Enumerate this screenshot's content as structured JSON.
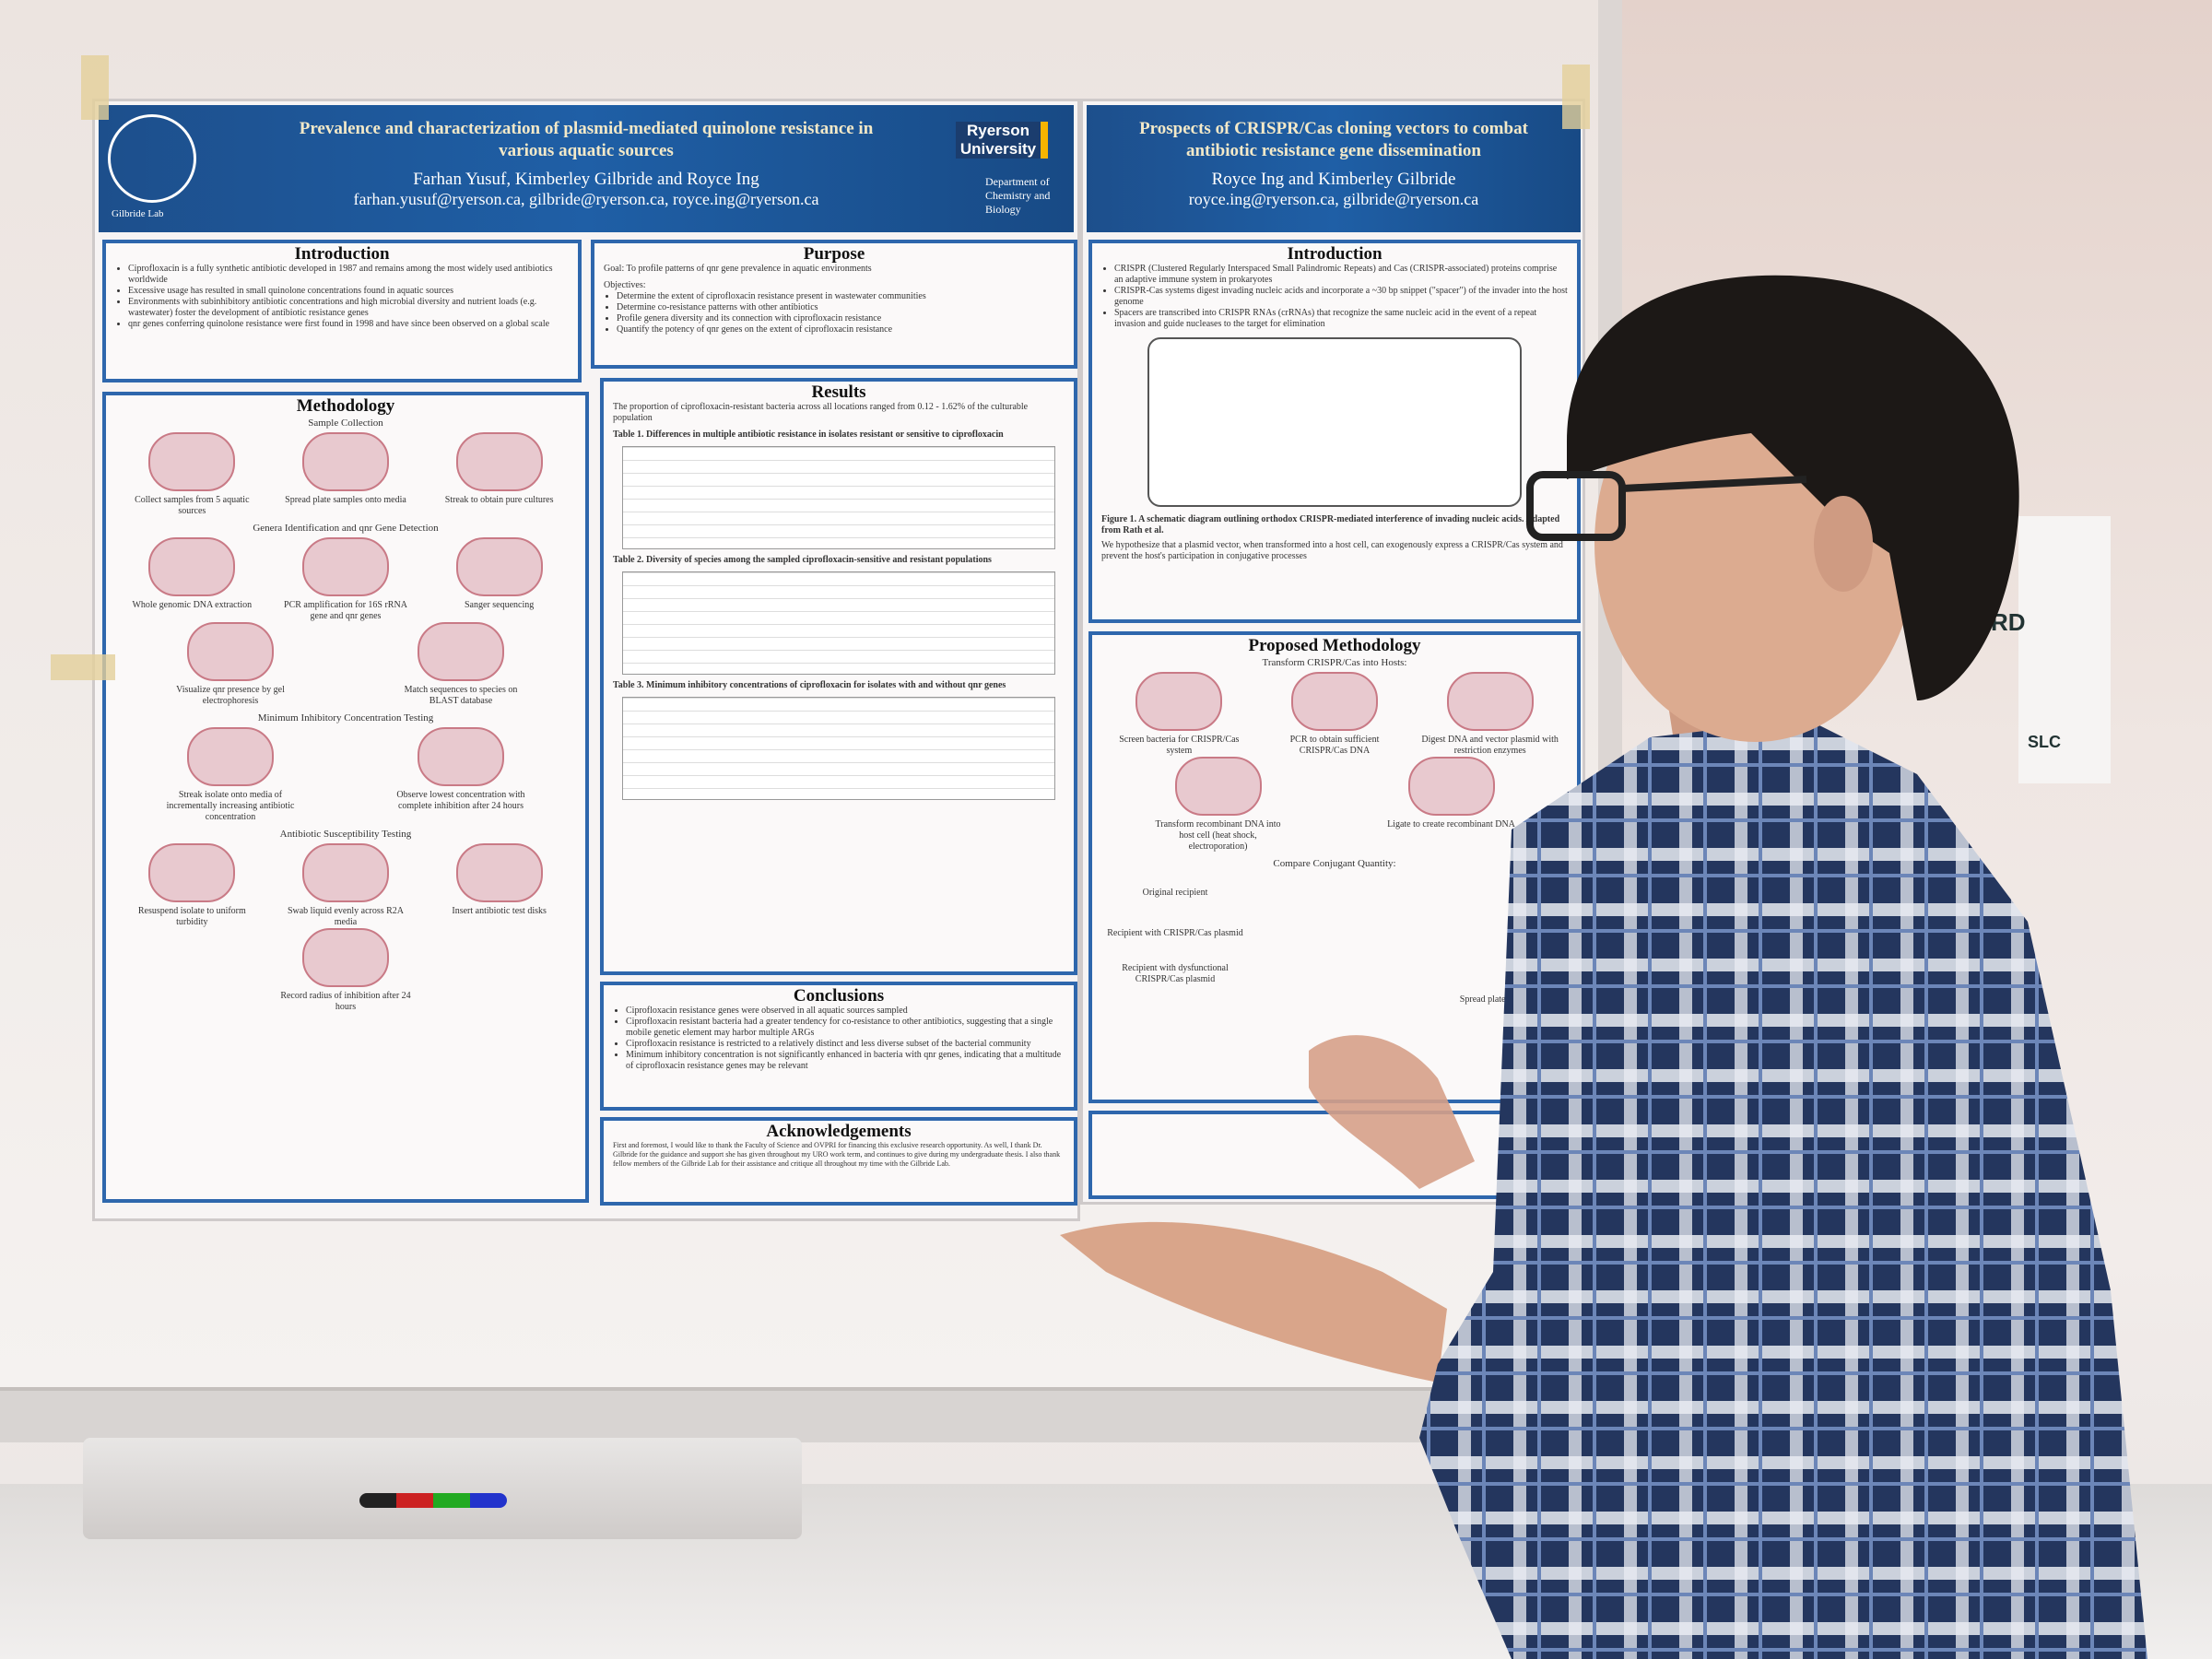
{
  "poster_left": {
    "title": "Prevalence and characterization of plasmid-mediated quinolone resistance in various aquatic sources",
    "authors": "Farhan Yusuf, Kimberley Gilbride and Royce Ing",
    "emails": "farhan.yusuf@ryerson.ca, gilbride@ryerson.ca, royce.ing@ryerson.ca",
    "logo_caption": "Gilbride Lab",
    "university": "Ryerson University",
    "department": "Department of Chemistry and Biology",
    "introduction": {
      "heading": "Introduction",
      "items": [
        "Ciprofloxacin is a fully synthetic antibiotic developed in 1987 and remains among the most widely used antibiotics worldwide",
        "Excessive usage has resulted in small quinolone concentrations found in aquatic sources",
        "Environments with subinhibitory antibiotic concentrations and high microbial diversity and nutrient loads (e.g. wastewater) foster the development of antibiotic resistance genes",
        "qnr genes conferring quinolone resistance were first found in 1998 and have since been observed on a global scale"
      ]
    },
    "purpose": {
      "heading": "Purpose",
      "goal": "Goal: To profile patterns of qnr gene prevalence in aquatic environments",
      "objectives_label": "Objectives:",
      "items": [
        "Determine the extent of ciprofloxacin resistance present in wastewater communities",
        "Determine co-resistance patterns with other antibiotics",
        "Profile genera diversity and its connection with ciprofloxacin resistance",
        "Quantify the potency of qnr genes on the extent of ciprofloxacin resistance"
      ]
    },
    "methodology": {
      "heading": "Methodology",
      "steps": [
        {
          "title": "Sample Collection",
          "captions": [
            "Collect samples from 5 aquatic sources",
            "Spread plate samples onto media",
            "Streak to obtain pure cultures"
          ]
        },
        {
          "title": "Genera Identification and qnr Gene Detection",
          "captions": [
            "Whole genomic DNA extraction",
            "PCR amplification for 16S rRNA gene and qnr genes",
            "Sanger sequencing",
            "Visualize qnr presence by gel electrophoresis",
            "Match sequences to species on BLAST database"
          ]
        },
        {
          "title": "Minimum Inhibitory Concentration Testing",
          "captions": [
            "Streak isolate onto media of incrementally increasing antibiotic concentration",
            "Observe lowest concentration with complete inhibition after 24 hours"
          ]
        },
        {
          "title": "Antibiotic Susceptibility Testing",
          "captions": [
            "Resuspend isolate to uniform turbidity",
            "Swab liquid evenly across R2A media",
            "Insert antibiotic test disks",
            "Record radius of inhibition after 24 hours"
          ]
        }
      ]
    },
    "results": {
      "heading": "Results",
      "summary": "The proportion of ciprofloxacin-resistant bacteria across all locations ranged from 0.12 - 1.62% of the culturable population",
      "tables": [
        "Table 1. Differences in multiple antibiotic resistance in isolates resistant or sensitive to ciprofloxacin",
        "Table 2. Diversity of species among the sampled ciprofloxacin-sensitive and resistant populations",
        "Table 3. Minimum inhibitory concentrations of ciprofloxacin for isolates with and without qnr genes"
      ]
    },
    "conclusions": {
      "heading": "Conclusions",
      "items": [
        "Ciprofloxacin resistance genes were observed in all aquatic sources sampled",
        "Ciprofloxacin resistant bacteria had a greater tendency for co-resistance to other antibiotics, suggesting that a single mobile genetic element may harbor multiple ARGs",
        "Ciprofloxacin resistance is restricted to a relatively distinct and less diverse subset of the bacterial community",
        "Minimum inhibitory concentration is not significantly enhanced in bacteria with qnr genes, indicating that a multitude of ciprofloxacin resistance genes may be relevant"
      ]
    },
    "acknowledgements": {
      "heading": "Acknowledgements",
      "text": "First and foremost, I would like to thank the Faculty of Science and OVPRI for financing this exclusive research opportunity. As well, I thank Dr. Gilbride for the guidance and support she has given throughout my URO work term, and continues to give during my undergraduate thesis. I also thank fellow members of the Gilbride Lab for their assistance and critique all throughout my time with the Gilbride Lab."
    }
  },
  "poster_right": {
    "title": "Prospects of CRISPR/Cas cloning vectors to combat antibiotic resistance gene dissemination",
    "authors": "Royce Ing and Kimberley Gilbride",
    "emails": "royce.ing@ryerson.ca, gilbride@ryerson.ca",
    "introduction": {
      "heading": "Introduction",
      "items": [
        "CRISPR (Clustered Regularly Interspaced Small Palindromic Repeats) and Cas (CRISPR-associated) proteins comprise an adaptive immune system in prokaryotes",
        "CRISPR-Cas systems digest invading nucleic acids and incorporate a ~30 bp snippet (\"spacer\") of the invader into the host genome",
        "Spacers are transcribed into CRISPR RNAs (crRNAs) that recognize the same nucleic acid in the event of a repeat invasion and guide nucleases to the target for elimination"
      ],
      "figure_caption": "Figure 1. A schematic diagram outlining orthodox CRISPR-mediated interference of invading nucleic acids. Adapted from Rath et al.",
      "hypothesis": "We hypothesize that a plasmid vector, when transformed into a host cell, can exogenously express a CRISPR/Cas system and prevent the host's participation in conjugative processes"
    },
    "methodology": {
      "heading": "Proposed Methodology",
      "transform_label": "Transform CRISPR/Cas into Hosts:",
      "captions": [
        "Screen bacteria for CRISPR/Cas system",
        "PCR to obtain sufficient CRISPR/Cas DNA",
        "Digest DNA and vector plasmid with restriction enzymes",
        "Transform recombinant DNA into host cell (heat shock, electroporation)",
        "Ligate to create recombinant DNA"
      ],
      "compare_label": "Compare Conjugant Quantity:",
      "recipients": [
        "Original recipient",
        "Recipient with CRISPR/Cas plasmid",
        "Recipient with dysfunctional CRISPR/Cas plasmid"
      ],
      "count_caption": "Spread plate and count CFUs"
    }
  },
  "wall_sign": {
    "fragment": "RD",
    "logo": "SLC"
  }
}
